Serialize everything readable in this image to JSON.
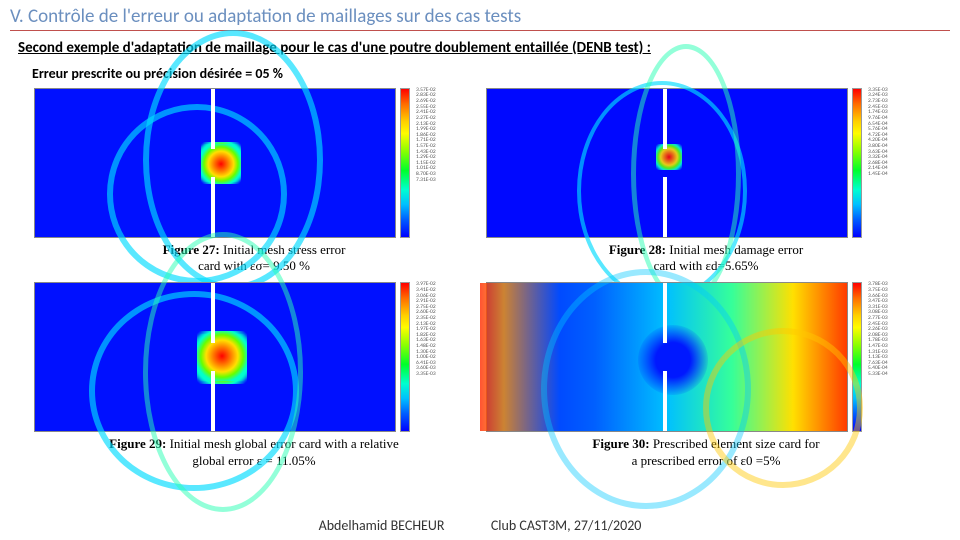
{
  "header": {
    "section_title": "V. Contrôle de l'erreur ou adaptation de maillages sur des cas tests",
    "subtitle": "Second exemple d'adaptation de maillage pour le cas d'une poutre doublement entaillée (DENB test) :",
    "prescribed": "Erreur prescrite ou précision désirée = 05 %"
  },
  "figures": {
    "f27": {
      "number": "Figure 27:",
      "caption_line1": "Initial mesh stress error",
      "caption_line2": "card with εσ= 9.50 %",
      "type": "heatmap",
      "colormap": "jet",
      "aspect": "3:1",
      "notches": true,
      "ticks": [
        "3.57E-02",
        "2.83E-02",
        "2.69E-02",
        "2.55E-02",
        "2.41E-02",
        "2.27E-02",
        "2.13E-02",
        "1.99E-02",
        "1.86E-02",
        "1.71E-02",
        "1.57E-02",
        "1.43E-02",
        "1.29E-02",
        "1.15E-02",
        "1.01E-02",
        "8.70E-03",
        "7.31E-03"
      ]
    },
    "f28": {
      "number": "Figure 28:",
      "caption_line1": "Initial mesh damage error",
      "caption_line2": "card with εd=5.65%",
      "type": "heatmap",
      "colormap": "jet",
      "aspect": "3:1",
      "notches": true,
      "ticks": [
        "3.35E-03",
        "3.24E-03",
        "2.73E-03",
        "2.45E-03",
        "1.74E-03",
        "9.76E-04",
        "6.54E-04",
        "5.76E-04",
        "4.72E-04",
        "4.20E-04",
        "3.80E-04",
        "3.63E-04",
        "3.32E-04",
        "2.68E-04",
        "2.14E-04",
        "1.45E-04"
      ]
    },
    "f29": {
      "number": "Figure 29:",
      "caption_line1": "Initial mesh global error card with a relative",
      "caption_line2": "global error ε = 11.05%",
      "type": "heatmap",
      "colormap": "jet",
      "aspect": "3:1",
      "notches": true,
      "ticks": [
        "3.97E-02",
        "3.41E-02",
        "3.06E-02",
        "2.91E-02",
        "2.75E-02",
        "2.60E-02",
        "2.35E-02",
        "2.13E-02",
        "1.97E-02",
        "1.82E-02",
        "1.63E-02",
        "1.48E-02",
        "1.30E-02",
        "1.00E-02",
        "6.41E-03",
        "3.60E-03",
        "3.35E-03"
      ]
    },
    "f30": {
      "number": "Figure 30:",
      "caption_line1": "Prescribed element size card for",
      "caption_line2": "a prescribed error of ε0 =5%",
      "type": "heatmap",
      "colormap": "jet",
      "aspect": "3:1",
      "notches": true,
      "ticks": [
        "3.78E-03",
        "3.75E-03",
        "3.66E-03",
        "3.47E-03",
        "3.31E-03",
        "3.08E-03",
        "2.77E-03",
        "2.45E-03",
        "2.26E-03",
        "2.08E-03",
        "1.78E-03",
        "1.47E-03",
        "1.31E-03",
        "1.13E-03",
        "7.63E-04",
        "5.40E-04",
        "5.33E-04"
      ]
    }
  },
  "footer": {
    "author": "Abdelhamid BECHEUR",
    "venue": "Club CAST3M, 27/11/2020"
  },
  "styling": {
    "title_color": "#6b8fbf",
    "rule_color": "#c0504d",
    "background": "#ffffff",
    "figure_border": "#888888",
    "colormap_stops": [
      "#ff0000",
      "#ff6a00",
      "#ffd000",
      "#fffc00",
      "#8aff00",
      "#00ff2a",
      "#00ffd0",
      "#00c0ff",
      "#0060ff",
      "#0000ff"
    ]
  }
}
